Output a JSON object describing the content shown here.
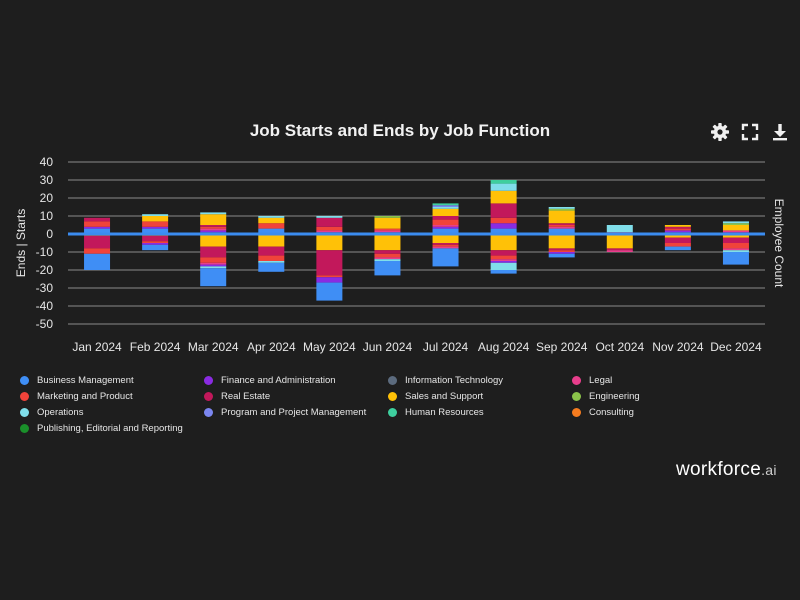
{
  "chart_data": {
    "type": "bar",
    "stacked": true,
    "title": "Job Starts and Ends by Job Function",
    "ylabel": "Ends | Starts",
    "y2label": "Employee Count",
    "ylim": [
      -50,
      40
    ],
    "yticks": [
      40,
      30,
      20,
      10,
      0,
      -10,
      -20,
      -30,
      -40,
      -50
    ],
    "categories": [
      "Jan 2024",
      "Feb 2024",
      "Mar 2024",
      "Apr 2024",
      "May 2024",
      "Jun 2024",
      "Jul 2024",
      "Aug 2024",
      "Sep 2024",
      "Oct 2024",
      "Nov 2024",
      "Dec 2024"
    ],
    "series": [
      {
        "name": "Business Management",
        "color": "#3f8ef5",
        "values": [
          3,
          3,
          1,
          3,
          1,
          1,
          3,
          3,
          3,
          0,
          1,
          0
        ]
      },
      {
        "name": "Finance and Administration",
        "color": "#8a2be2",
        "values": [
          1,
          1,
          1,
          0,
          0,
          0,
          1,
          3,
          0,
          0,
          1,
          1
        ]
      },
      {
        "name": "Information Technology",
        "color": "#5c6b7e",
        "values": [
          0,
          0,
          0,
          0,
          0,
          0,
          0,
          0,
          0,
          0,
          0,
          0
        ]
      },
      {
        "name": "Legal",
        "color": "#e83e8c",
        "values": [
          0,
          0,
          1,
          0,
          1,
          1,
          1,
          0,
          1,
          1,
          0,
          1
        ]
      },
      {
        "name": "Marketing and Product",
        "color": "#f0433a",
        "values": [
          3,
          3,
          1,
          3,
          2,
          1,
          3,
          3,
          1,
          0,
          1,
          0
        ]
      },
      {
        "name": "Real Estate",
        "color": "#c2185b",
        "values": [
          2,
          0,
          1,
          0,
          5,
          0,
          2,
          8,
          1,
          0,
          1,
          0
        ]
      },
      {
        "name": "Sales and Support",
        "color": "#ffc107",
        "values": [
          0,
          3,
          6,
          3,
          0,
          6,
          4,
          7,
          7,
          0,
          1,
          3
        ]
      },
      {
        "name": "Engineering",
        "color": "#8bc34a",
        "values": [
          0,
          0,
          0,
          0,
          0,
          1,
          0,
          0,
          1,
          0,
          0,
          1
        ]
      },
      {
        "name": "Operations",
        "color": "#80deea",
        "values": [
          0,
          1,
          1,
          1,
          1,
          0,
          1,
          4,
          1,
          4,
          0,
          1
        ]
      },
      {
        "name": "Program and Project Management",
        "color": "#7b86f0",
        "values": [
          0,
          0,
          0,
          0,
          0,
          0,
          1,
          0,
          0,
          0,
          0,
          0
        ]
      },
      {
        "name": "Human Resources",
        "color": "#3ecf9e",
        "values": [
          0,
          0,
          0,
          0,
          0,
          0,
          1,
          2,
          0,
          0,
          0,
          0
        ]
      },
      {
        "name": "Consulting",
        "color": "#f57c1f",
        "values": [
          0,
          0,
          0,
          0,
          0,
          0,
          0,
          0,
          0,
          0,
          0,
          0
        ]
      },
      {
        "name": "Publishing, Editorial and Reporting",
        "color": "#1a8f2a",
        "values": [
          0,
          0,
          0,
          0,
          0,
          0,
          0,
          0,
          0,
          0,
          0,
          0
        ]
      }
    ],
    "ends": [
      {
        "name": "Sales and Support",
        "values": [
          -1,
          -1,
          -7,
          -7,
          -9,
          -9,
          -5,
          -9,
          -8,
          -8,
          -2,
          -2
        ]
      },
      {
        "name": "Real Estate",
        "values": [
          -7,
          -3,
          -6,
          -5,
          -14,
          -2,
          -1,
          -3,
          -1,
          -1,
          -3,
          -3
        ]
      },
      {
        "name": "Marketing and Product",
        "values": [
          -3,
          -1,
          -3,
          -3,
          -1,
          -2,
          -1,
          -2,
          -1,
          0,
          -2,
          -3
        ]
      },
      {
        "name": "Legal",
        "values": [
          0,
          0,
          -1,
          0,
          0,
          -1,
          -1,
          -1,
          0,
          -1,
          0,
          -1
        ]
      },
      {
        "name": "Finance and Administration",
        "values": [
          0,
          -1,
          -1,
          0,
          -3,
          0,
          0,
          -1,
          -1,
          0,
          0,
          0
        ]
      },
      {
        "name": "Operations",
        "values": [
          0,
          0,
          -1,
          -1,
          0,
          -1,
          0,
          -4,
          0,
          0,
          0,
          -1
        ]
      },
      {
        "name": "Business Management",
        "values": [
          -9,
          -3,
          -10,
          -5,
          -10,
          -8,
          -10,
          -2,
          -2,
          0,
          -2,
          -7
        ]
      }
    ]
  },
  "legend": [
    {
      "label": "Business Management",
      "color": "#3f8ef5"
    },
    {
      "label": "Finance and Administration",
      "color": "#8a2be2"
    },
    {
      "label": "Information Technology",
      "color": "#5c6b7e"
    },
    {
      "label": "Legal",
      "color": "#e83e8c"
    },
    {
      "label": "Marketing and Product",
      "color": "#f0433a"
    },
    {
      "label": "Real Estate",
      "color": "#c2185b"
    },
    {
      "label": "Sales and Support",
      "color": "#ffc107"
    },
    {
      "label": "Engineering",
      "color": "#8bc34a"
    },
    {
      "label": "Operations",
      "color": "#80deea"
    },
    {
      "label": "Program and Project Management",
      "color": "#7b86f0"
    },
    {
      "label": "Human Resources",
      "color": "#3ecf9e"
    },
    {
      "label": "Consulting",
      "color": "#f57c1f"
    },
    {
      "label": "Publishing, Editorial and Reporting",
      "color": "#1a8f2a"
    }
  ],
  "toolbar": {
    "settings_icon": "gear-icon",
    "expand_icon": "fullscreen-icon",
    "download_icon": "download-icon"
  },
  "brand": {
    "name": "workforce",
    "suffix": ".ai"
  },
  "colors": {
    "background": "#1e1e1e",
    "grid": "#8a8a8a",
    "employee_line": "#3b8cf0"
  }
}
